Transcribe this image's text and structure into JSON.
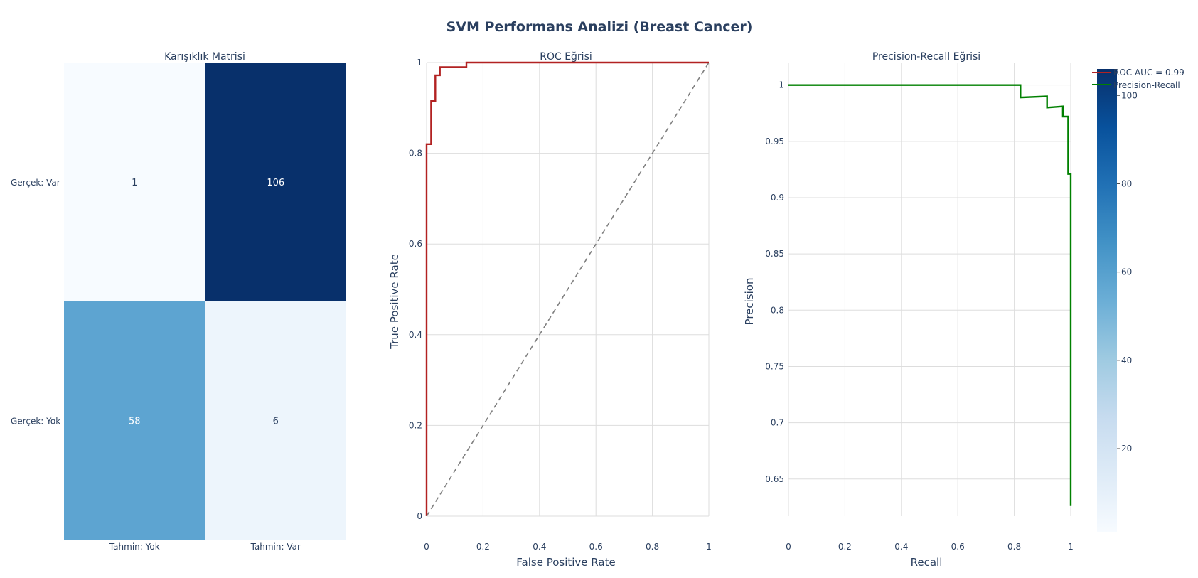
{
  "title": "SVM Performans Analizi (Breast Cancer)",
  "colors": {
    "roc": "#b22222",
    "pr": "#008000",
    "diagonal": "#7f7f7f",
    "grid": "#dddddd",
    "text": "#2a3f5f",
    "blues_scale": [
      "#f7fbff",
      "#deebf7",
      "#c6dbef",
      "#9ecae1",
      "#6baed6",
      "#4292c6",
      "#2171b5",
      "#08519c",
      "#08306b"
    ]
  },
  "chart_data": [
    {
      "type": "heatmap",
      "title": "Karışıklık Matrisi",
      "x_categories": [
        "Tahmin: Yok",
        "Tahmin: Var"
      ],
      "y_categories": [
        "Gerçek: Var",
        "Gerçek: Yok"
      ],
      "z": [
        [
          1,
          106
        ],
        [
          58,
          6
        ]
      ],
      "colorscale": "Blues",
      "colorbar": {
        "range": [
          1,
          106
        ],
        "ticks": [
          20,
          40,
          60,
          80,
          100
        ]
      }
    },
    {
      "type": "line",
      "title": "ROC Eğrisi",
      "xlabel": "False Positive Rate",
      "ylabel": "True Positive Rate",
      "xlim": [
        0,
        1
      ],
      "ylim": [
        0,
        1
      ],
      "xticks": [
        0,
        0.2,
        0.4,
        0.6,
        0.8,
        1
      ],
      "yticks": [
        0,
        0.2,
        0.4,
        0.6,
        0.8,
        1
      ],
      "grid": true,
      "series": [
        {
          "name": "ROC AUC = 0.99",
          "x": [
            0,
            0,
            0.016,
            0.016,
            0.031,
            0.031,
            0.047,
            0.047,
            0.141,
            0.141,
            1
          ],
          "y": [
            0,
            0.82,
            0.82,
            0.915,
            0.915,
            0.972,
            0.972,
            0.99,
            0.99,
            1,
            1
          ]
        },
        {
          "x": [
            0,
            1
          ],
          "y": [
            0,
            1
          ],
          "dash": true
        }
      ]
    },
    {
      "type": "line",
      "title": "Precision-Recall Eğrisi",
      "xlabel": "Recall",
      "ylabel": "Precision",
      "xlim": [
        0,
        1
      ],
      "ylim": [
        0.617,
        1.02
      ],
      "xticks": [
        0,
        0.2,
        0.4,
        0.6,
        0.8,
        1
      ],
      "yticks": [
        0.65,
        0.7,
        0.75,
        0.8,
        0.85,
        0.9,
        0.95,
        1
      ],
      "grid": true,
      "series": [
        {
          "name": "Precision-Recall",
          "x": [
            0,
            0.822,
            0.822,
            0.916,
            0.916,
            0.972,
            0.972,
            0.991,
            0.991,
            1,
            1
          ],
          "y": [
            1,
            1,
            0.989,
            0.99,
            0.98,
            0.981,
            0.972,
            0.972,
            0.921,
            0.921,
            0.626
          ]
        }
      ]
    }
  ],
  "legend": {
    "placement": "top-right",
    "items": [
      "ROC AUC = 0.99",
      "Precision-Recall"
    ]
  }
}
